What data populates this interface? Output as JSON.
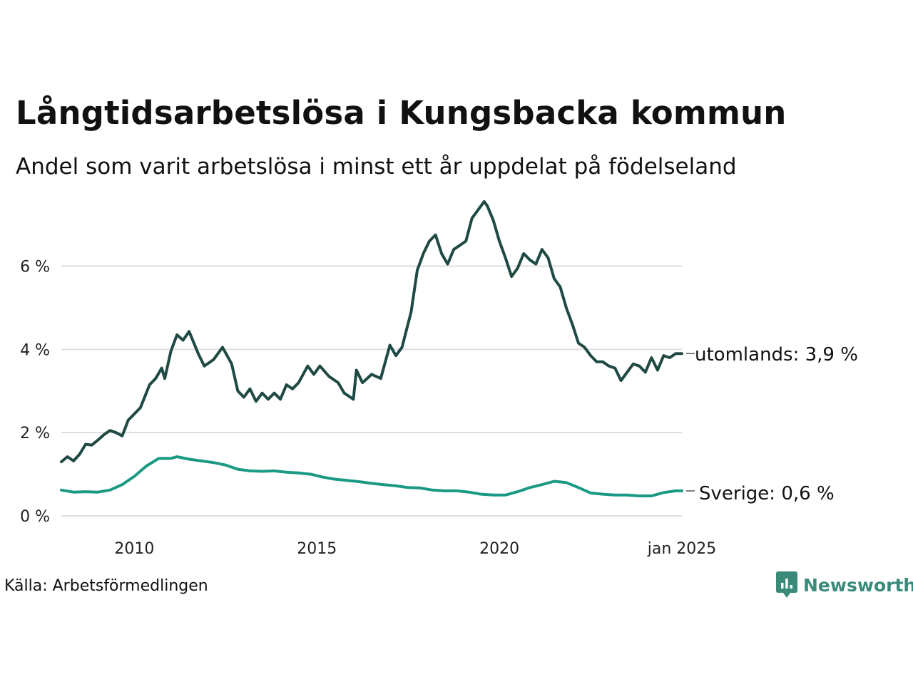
{
  "title": "Långtidsarbetslösa i Kungsbacka kommun",
  "subtitle": "Andel som varit arbetslösa i minst ett år uppdelat på födelseland",
  "source": "Källa: Arbetsförmedlingen",
  "logo_text": "Newsworthy",
  "colors": {
    "utomlands": "#1f4a44",
    "sverige": "#1a9a82",
    "grid": "#dddddd",
    "logo": "#3a8a7a"
  },
  "chart_data": {
    "type": "line",
    "x_unit": "date (monthly)",
    "x_range": [
      "2008-01",
      "2025-01"
    ],
    "ylim": [
      0,
      7.6
    ],
    "y_unit": "%",
    "y_ticks": [
      {
        "value": 0,
        "label": "0 %"
      },
      {
        "value": 2,
        "label": "2 %"
      },
      {
        "value": 4,
        "label": "4 %"
      },
      {
        "value": 6,
        "label": "6 %"
      }
    ],
    "x_ticks": [
      {
        "value": "2010-01",
        "label": "2010"
      },
      {
        "value": "2015-01",
        "label": "2015"
      },
      {
        "value": "2020-01",
        "label": "2020"
      },
      {
        "value": "2025-01",
        "label": "jan 2025"
      }
    ],
    "grid": true,
    "series": [
      {
        "key": "utomlands",
        "name": "utomlands",
        "end_label": "utomlands: 3,9 %",
        "points": [
          [
            "2008-01",
            1.3
          ],
          [
            "2008-03",
            1.42
          ],
          [
            "2008-05",
            1.32
          ],
          [
            "2008-07",
            1.48
          ],
          [
            "2008-09",
            1.72
          ],
          [
            "2008-11",
            1.7
          ],
          [
            "2009-01",
            1.82
          ],
          [
            "2009-03",
            1.95
          ],
          [
            "2009-05",
            2.05
          ],
          [
            "2009-07",
            2.0
          ],
          [
            "2009-09",
            1.92
          ],
          [
            "2009-11",
            2.3
          ],
          [
            "2010-01",
            2.45
          ],
          [
            "2010-03",
            2.6
          ],
          [
            "2010-06",
            3.15
          ],
          [
            "2010-08",
            3.3
          ],
          [
            "2010-10",
            3.55
          ],
          [
            "2010-11",
            3.3
          ],
          [
            "2011-01",
            3.95
          ],
          [
            "2011-03",
            4.35
          ],
          [
            "2011-05",
            4.22
          ],
          [
            "2011-07",
            4.43
          ],
          [
            "2011-10",
            3.9
          ],
          [
            "2011-12",
            3.6
          ],
          [
            "2012-03",
            3.75
          ],
          [
            "2012-06",
            4.05
          ],
          [
            "2012-09",
            3.65
          ],
          [
            "2012-11",
            3.0
          ],
          [
            "2013-01",
            2.85
          ],
          [
            "2013-03",
            3.05
          ],
          [
            "2013-05",
            2.75
          ],
          [
            "2013-07",
            2.95
          ],
          [
            "2013-09",
            2.8
          ],
          [
            "2013-11",
            2.95
          ],
          [
            "2014-01",
            2.8
          ],
          [
            "2014-03",
            3.15
          ],
          [
            "2014-05",
            3.05
          ],
          [
            "2014-07",
            3.2
          ],
          [
            "2014-10",
            3.6
          ],
          [
            "2014-12",
            3.4
          ],
          [
            "2015-02",
            3.6
          ],
          [
            "2015-05",
            3.35
          ],
          [
            "2015-08",
            3.2
          ],
          [
            "2015-10",
            2.95
          ],
          [
            "2016-01",
            2.8
          ],
          [
            "2016-02",
            3.5
          ],
          [
            "2016-04",
            3.2
          ],
          [
            "2016-07",
            3.4
          ],
          [
            "2016-10",
            3.3
          ],
          [
            "2017-01",
            4.1
          ],
          [
            "2017-03",
            3.85
          ],
          [
            "2017-05",
            4.05
          ],
          [
            "2017-08",
            4.9
          ],
          [
            "2017-10",
            5.9
          ],
          [
            "2017-12",
            6.3
          ],
          [
            "2018-02",
            6.6
          ],
          [
            "2018-04",
            6.75
          ],
          [
            "2018-06",
            6.3
          ],
          [
            "2018-08",
            6.05
          ],
          [
            "2018-10",
            6.4
          ],
          [
            "2018-12",
            6.5
          ],
          [
            "2019-02",
            6.6
          ],
          [
            "2019-04",
            7.15
          ],
          [
            "2019-06",
            7.35
          ],
          [
            "2019-08",
            7.55
          ],
          [
            "2019-09",
            7.45
          ],
          [
            "2019-11",
            7.1
          ],
          [
            "2020-01",
            6.6
          ],
          [
            "2020-03",
            6.2
          ],
          [
            "2020-05",
            5.75
          ],
          [
            "2020-07",
            5.95
          ],
          [
            "2020-09",
            6.3
          ],
          [
            "2020-11",
            6.15
          ],
          [
            "2021-01",
            6.05
          ],
          [
            "2021-03",
            6.4
          ],
          [
            "2021-05",
            6.2
          ],
          [
            "2021-07",
            5.7
          ],
          [
            "2021-09",
            5.5
          ],
          [
            "2021-11",
            5.0
          ],
          [
            "2022-01",
            4.6
          ],
          [
            "2022-03",
            4.15
          ],
          [
            "2022-05",
            4.05
          ],
          [
            "2022-07",
            3.85
          ],
          [
            "2022-09",
            3.7
          ],
          [
            "2022-11",
            3.7
          ],
          [
            "2023-01",
            3.6
          ],
          [
            "2023-03",
            3.55
          ],
          [
            "2023-05",
            3.25
          ],
          [
            "2023-07",
            3.45
          ],
          [
            "2023-09",
            3.65
          ],
          [
            "2023-11",
            3.6
          ],
          [
            "2024-01",
            3.45
          ],
          [
            "2024-03",
            3.8
          ],
          [
            "2024-05",
            3.5
          ],
          [
            "2024-07",
            3.85
          ],
          [
            "2024-09",
            3.8
          ],
          [
            "2024-11",
            3.9
          ],
          [
            "2025-01",
            3.9
          ]
        ]
      },
      {
        "key": "sverige",
        "name": "Sverige",
        "end_label": "Sverige: 0,6 %",
        "points": [
          [
            "2008-01",
            0.62
          ],
          [
            "2008-05",
            0.57
          ],
          [
            "2008-09",
            0.58
          ],
          [
            "2009-01",
            0.57
          ],
          [
            "2009-05",
            0.62
          ],
          [
            "2009-09",
            0.75
          ],
          [
            "2010-01",
            0.95
          ],
          [
            "2010-05",
            1.2
          ],
          [
            "2010-09",
            1.38
          ],
          [
            "2011-01",
            1.38
          ],
          [
            "2011-03",
            1.42
          ],
          [
            "2011-07",
            1.36
          ],
          [
            "2011-11",
            1.32
          ],
          [
            "2012-03",
            1.28
          ],
          [
            "2012-07",
            1.22
          ],
          [
            "2012-11",
            1.12
          ],
          [
            "2013-03",
            1.08
          ],
          [
            "2013-07",
            1.07
          ],
          [
            "2013-11",
            1.08
          ],
          [
            "2014-03",
            1.05
          ],
          [
            "2014-07",
            1.03
          ],
          [
            "2014-11",
            1.0
          ],
          [
            "2015-03",
            0.93
          ],
          [
            "2015-07",
            0.88
          ],
          [
            "2015-11",
            0.85
          ],
          [
            "2016-03",
            0.82
          ],
          [
            "2016-07",
            0.78
          ],
          [
            "2016-11",
            0.75
          ],
          [
            "2017-03",
            0.72
          ],
          [
            "2017-07",
            0.68
          ],
          [
            "2017-11",
            0.67
          ],
          [
            "2018-03",
            0.62
          ],
          [
            "2018-07",
            0.6
          ],
          [
            "2018-11",
            0.6
          ],
          [
            "2019-03",
            0.57
          ],
          [
            "2019-07",
            0.52
          ],
          [
            "2019-11",
            0.5
          ],
          [
            "2020-03",
            0.5
          ],
          [
            "2020-07",
            0.58
          ],
          [
            "2020-11",
            0.68
          ],
          [
            "2021-03",
            0.75
          ],
          [
            "2021-07",
            0.83
          ],
          [
            "2021-11",
            0.8
          ],
          [
            "2022-03",
            0.68
          ],
          [
            "2022-07",
            0.55
          ],
          [
            "2022-11",
            0.52
          ],
          [
            "2023-03",
            0.5
          ],
          [
            "2023-07",
            0.5
          ],
          [
            "2023-11",
            0.48
          ],
          [
            "2024-03",
            0.48
          ],
          [
            "2024-07",
            0.56
          ],
          [
            "2024-11",
            0.6
          ],
          [
            "2025-01",
            0.6
          ]
        ]
      }
    ]
  }
}
